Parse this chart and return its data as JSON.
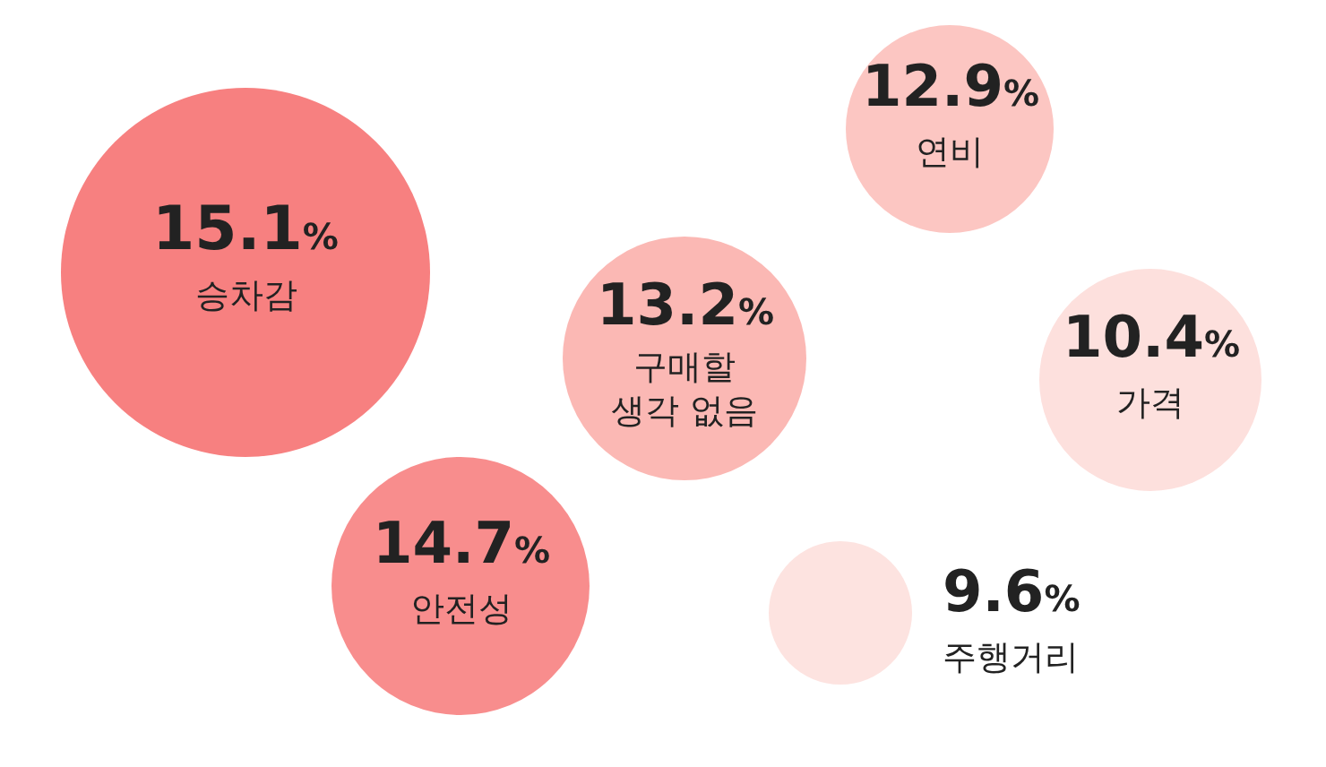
{
  "chart_data": {
    "type": "other",
    "categories": [
      "승차감",
      "안전성",
      "구매할 생각 없음",
      "연비",
      "가격",
      "주행거리"
    ],
    "values": [
      15.1,
      14.7,
      13.2,
      12.9,
      10.4,
      9.6
    ],
    "value_labels": [
      "15.1%",
      "14.7%",
      "13.2%",
      "12.9%",
      "10.4%",
      "9.6%"
    ],
    "colors": [
      "#f78080",
      "#f88d8d",
      "#fbb8b4",
      "#fcc6c2",
      "#fde0dd",
      "#fde3e0"
    ]
  }
}
